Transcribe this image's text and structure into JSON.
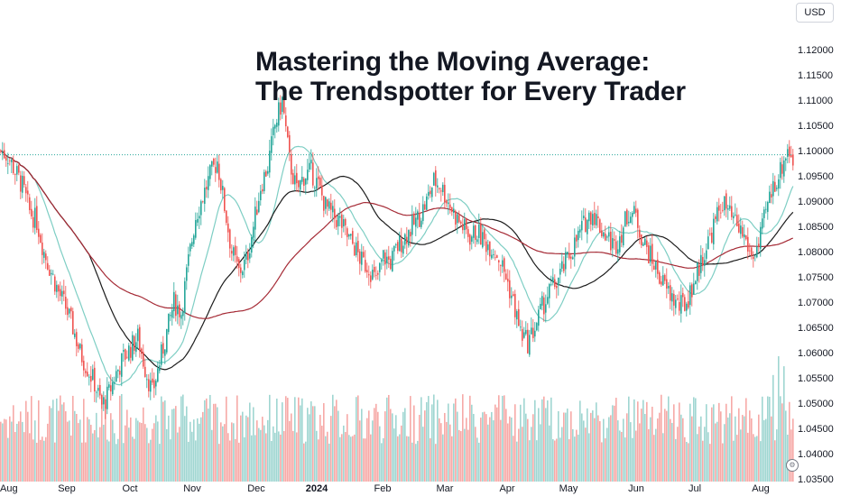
{
  "header": {
    "title_line1": "Mastering the Moving Average:",
    "title_line2": "The Trendspotter for Every Trader",
    "currency": "USD"
  },
  "colors": {
    "up": "#26a69a",
    "down": "#ef5350",
    "volume_up": "#9fd6d1",
    "volume_down": "#f6a9a7",
    "ma_short": "#7ecec4",
    "ma_medium": "#1c1c1c",
    "ma_long": "#a52a35",
    "last_price_line": "#26a69a",
    "axis_text": "#131722"
  },
  "chart_data": {
    "type": "candlestick",
    "symbol_currency": "USD",
    "x_tick_labels": [
      "Aug",
      "Sep",
      "Oct",
      "Nov",
      "Dec",
      "2024",
      "Feb",
      "Mar",
      "Apr",
      "May",
      "Jun",
      "Jul",
      "Aug"
    ],
    "y_tick_labels": [
      "1.12000",
      "1.11500",
      "1.11000",
      "1.10500",
      "1.10000",
      "1.09500",
      "1.09000",
      "1.08500",
      "1.08000",
      "1.07500",
      "1.07000",
      "1.06500",
      "1.06000",
      "1.05500",
      "1.05000",
      "1.04500",
      "1.04000",
      "1.03500"
    ],
    "ylim": [
      1.0345,
      1.1245
    ],
    "last_price": 1.0992,
    "close_path": [
      [
        0,
        1.1
      ],
      [
        4,
        1.099
      ],
      [
        8,
        1.096
      ],
      [
        12,
        1.093
      ],
      [
        16,
        1.088
      ],
      [
        20,
        1.086
      ],
      [
        24,
        1.08
      ],
      [
        28,
        1.076
      ],
      [
        32,
        1.072
      ],
      [
        36,
        1.069
      ],
      [
        40,
        1.065
      ],
      [
        44,
        1.06
      ],
      [
        48,
        1.057
      ],
      [
        52,
        1.054
      ],
      [
        56,
        1.0495
      ],
      [
        60,
        1.052
      ],
      [
        64,
        1.056
      ],
      [
        68,
        1.059
      ],
      [
        72,
        1.061
      ],
      [
        76,
        1.063
      ],
      [
        80,
        1.057
      ],
      [
        84,
        1.052
      ],
      [
        88,
        1.058
      ],
      [
        92,
        1.064
      ],
      [
        96,
        1.07
      ],
      [
        100,
        1.068
      ],
      [
        104,
        1.078
      ],
      [
        108,
        1.087
      ],
      [
        112,
        1.091
      ],
      [
        116,
        1.095
      ],
      [
        120,
        1.098
      ],
      [
        124,
        1.089
      ],
      [
        128,
        1.08
      ],
      [
        132,
        1.076
      ],
      [
        136,
        1.078
      ],
      [
        140,
        1.085
      ],
      [
        144,
        1.093
      ],
      [
        148,
        1.097
      ],
      [
        152,
        1.105
      ],
      [
        156,
        1.11
      ],
      [
        160,
        1.098
      ],
      [
        164,
        1.092
      ],
      [
        168,
        1.095
      ],
      [
        172,
        1.096
      ],
      [
        176,
        1.093
      ],
      [
        180,
        1.089
      ],
      [
        184,
        1.087
      ],
      [
        188,
        1.086
      ],
      [
        192,
        1.083
      ],
      [
        196,
        1.081
      ],
      [
        200,
        1.078
      ],
      [
        204,
        1.077
      ],
      [
        208,
        1.074
      ],
      [
        212,
        1.079
      ],
      [
        216,
        1.078
      ],
      [
        220,
        1.081
      ],
      [
        224,
        1.083
      ],
      [
        228,
        1.085
      ],
      [
        232,
        1.087
      ],
      [
        236,
        1.09
      ],
      [
        240,
        1.094
      ],
      [
        244,
        1.093
      ],
      [
        248,
        1.09
      ],
      [
        252,
        1.087
      ],
      [
        256,
        1.085
      ],
      [
        260,
        1.083
      ],
      [
        264,
        1.084
      ],
      [
        268,
        1.082
      ],
      [
        272,
        1.081
      ],
      [
        276,
        1.079
      ],
      [
        280,
        1.075
      ],
      [
        284,
        1.07
      ],
      [
        288,
        1.064
      ],
      [
        292,
        1.062
      ],
      [
        296,
        1.065
      ],
      [
        300,
        1.069
      ],
      [
        304,
        1.072
      ],
      [
        308,
        1.074
      ],
      [
        312,
        1.077
      ],
      [
        316,
        1.08
      ],
      [
        320,
        1.083
      ],
      [
        324,
        1.086
      ],
      [
        328,
        1.088
      ],
      [
        332,
        1.085
      ],
      [
        336,
        1.083
      ],
      [
        340,
        1.081
      ],
      [
        344,
        1.084
      ],
      [
        348,
        1.088
      ],
      [
        352,
        1.087
      ],
      [
        356,
        1.082
      ],
      [
        360,
        1.079
      ],
      [
        364,
        1.076
      ],
      [
        368,
        1.073
      ],
      [
        372,
        1.071
      ],
      [
        376,
        1.069
      ],
      [
        380,
        1.07
      ],
      [
        384,
        1.074
      ],
      [
        388,
        1.078
      ],
      [
        392,
        1.082
      ],
      [
        396,
        1.086
      ],
      [
        400,
        1.09
      ],
      [
        404,
        1.087
      ],
      [
        408,
        1.085
      ],
      [
        412,
        1.083
      ],
      [
        416,
        1.079
      ],
      [
        420,
        1.081
      ],
      [
        424,
        1.088
      ],
      [
        428,
        1.093
      ],
      [
        432,
        1.096
      ],
      [
        436,
        1.1005
      ],
      [
        439,
        1.0985
      ]
    ],
    "volume_scale": [
      0,
      1
    ]
  }
}
